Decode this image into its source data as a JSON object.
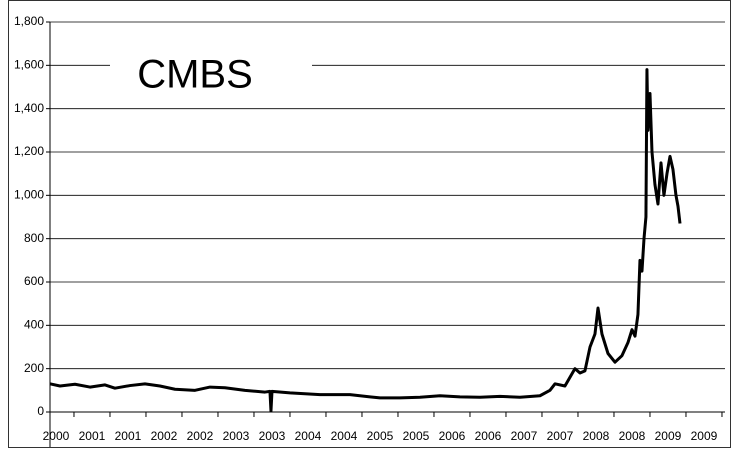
{
  "chart_data": {
    "type": "line",
    "title": "CMBS",
    "xlim": [
      1999.917,
      2009.292
    ],
    "xticks": [
      {
        "value": 2000.0,
        "label": "2000"
      },
      {
        "value": 2000.5,
        "label": "2001"
      },
      {
        "value": 2001.0,
        "label": "2001"
      },
      {
        "value": 2001.5,
        "label": "2002"
      },
      {
        "value": 2002.0,
        "label": "2002"
      },
      {
        "value": 2002.5,
        "label": "2003"
      },
      {
        "value": 2003.0,
        "label": "2003"
      },
      {
        "value": 2003.5,
        "label": "2004"
      },
      {
        "value": 2004.0,
        "label": "2004"
      },
      {
        "value": 2004.5,
        "label": "2005"
      },
      {
        "value": 2005.0,
        "label": "2005"
      },
      {
        "value": 2005.5,
        "label": "2006"
      },
      {
        "value": 2006.0,
        "label": "2006"
      },
      {
        "value": 2006.5,
        "label": "2007"
      },
      {
        "value": 2007.0,
        "label": "2007"
      },
      {
        "value": 2007.5,
        "label": "2008"
      },
      {
        "value": 2008.0,
        "label": "2008"
      },
      {
        "value": 2008.5,
        "label": "2009"
      },
      {
        "value": 2009.0,
        "label": "2009"
      }
    ],
    "ylim": [
      0,
      1800
    ],
    "yticks": [
      0,
      200,
      400,
      600,
      800,
      {
        "value": 1000,
        "label": "1,000"
      },
      {
        "value": 1200,
        "label": "1,200"
      },
      {
        "value": 1400,
        "label": "1,400"
      },
      {
        "value": 1600,
        "label": "1,600"
      },
      {
        "value": 1800,
        "label": "1,800"
      }
    ],
    "grid": true,
    "x": [
      1999.917,
      2000.056,
      2000.264,
      2000.472,
      2000.681,
      2000.819,
      2001.028,
      2001.236,
      2001.444,
      2001.653,
      2001.931,
      2002.139,
      2002.347,
      2002.625,
      2002.903,
      2002.972,
      2002.986,
      2003.0,
      2003.25,
      2003.667,
      2004.083,
      2004.361,
      2004.5,
      2004.778,
      2005.056,
      2005.333,
      2005.611,
      2005.889,
      2006.167,
      2006.444,
      2006.722,
      2006.861,
      2006.931,
      2007.069,
      2007.208,
      2007.278,
      2007.347,
      2007.417,
      2007.486,
      2007.528,
      2007.583,
      2007.667,
      2007.764,
      2007.861,
      2007.944,
      2008.0,
      2008.042,
      2008.083,
      2008.111,
      2008.139,
      2008.167,
      2008.194,
      2008.208,
      2008.222,
      2008.25,
      2008.278,
      2008.319,
      2008.361,
      2008.403,
      2008.444,
      2008.486,
      2008.528,
      2008.569,
      2008.611,
      2008.639,
      2008.667
    ],
    "series": [
      {
        "color": "#000000",
        "values": [
          130,
          120,
          128,
          115,
          125,
          110,
          122,
          130,
          120,
          105,
          100,
          115,
          112,
          100,
          92,
          95,
          5,
          95,
          88,
          80,
          80,
          70,
          65,
          65,
          68,
          75,
          70,
          68,
          72,
          68,
          75,
          100,
          130,
          120,
          200,
          180,
          190,
          300,
          360,
          480,
          360,
          270,
          230,
          260,
          320,
          380,
          350,
          450,
          700,
          650,
          800,
          900,
          1580,
          1300,
          1470,
          1200,
          1050,
          960,
          1150,
          1000,
          1100,
          1180,
          1120,
          1000,
          950,
          870
        ]
      }
    ]
  }
}
